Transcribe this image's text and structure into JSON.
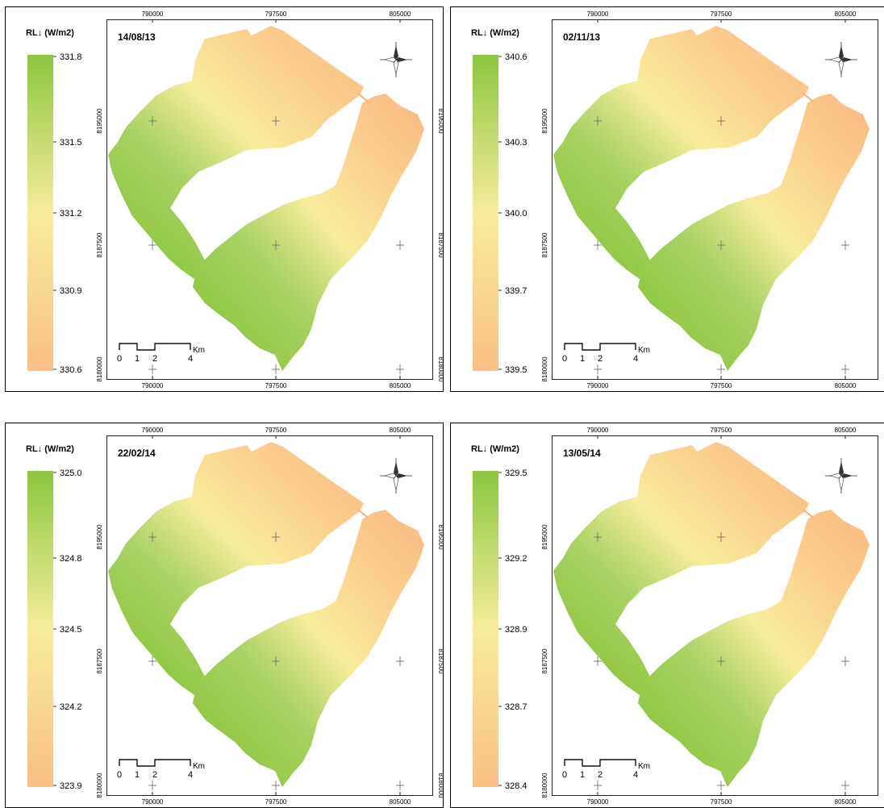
{
  "legend_title": "RL↓ (W/m2)",
  "scale_bar": {
    "ticks": [
      "0",
      "1",
      "2",
      "4"
    ],
    "unit": "Km"
  },
  "x_ticks": [
    "790000",
    "797500",
    "805000"
  ],
  "y_ticks": [
    "8180000",
    "8187500",
    "8195000"
  ],
  "colors": {
    "low": "#fbbf85",
    "mid": "#f6ed9b",
    "high": "#8cc63f"
  },
  "panels": [
    {
      "date": "14/08/13",
      "legend_values": [
        "331.8",
        "331.5",
        "331.2",
        "330.9",
        "330.6"
      ]
    },
    {
      "date": "02/11/13",
      "legend_values": [
        "340.6",
        "340.3",
        "340.0",
        "339.7",
        "339.5"
      ]
    },
    {
      "date": "22/02/14",
      "legend_values": [
        "325.0",
        "324.8",
        "324.5",
        "324.2",
        "323.9"
      ]
    },
    {
      "date": "13/05/14",
      "legend_values": [
        "329.5",
        "329.2",
        "328.9",
        "328.7",
        "328.4"
      ]
    }
  ]
}
